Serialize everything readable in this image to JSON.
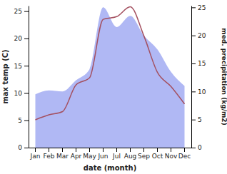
{
  "chart_data": {
    "type": "line",
    "x_label": "date (month)",
    "y_label": "max temp (C)",
    "y2_label": "med. precipitation (kg/m2)",
    "categories": [
      "Jan",
      "Feb",
      "Mar",
      "Apr",
      "May",
      "Jun",
      "Jul",
      "Aug",
      "Sep",
      "Oct",
      "Nov",
      "Dec"
    ],
    "ylim": [
      0,
      26
    ],
    "yticks": [
      0,
      5,
      10,
      15,
      20,
      25
    ],
    "y2lim": [
      0,
      25.3
    ],
    "y2ticks": [
      0,
      5,
      10,
      15,
      20,
      25
    ],
    "series": [
      {
        "type": "area",
        "axis": "y2",
        "color": "#b0b8f4",
        "values": [
          9.5,
          10.2,
          10.0,
          12.0,
          14.0,
          25.0,
          21.5,
          23.5,
          20.0,
          17.5,
          13.5,
          11.0
        ]
      },
      {
        "type": "line",
        "color": "#a45060",
        "values": [
          5.1,
          6.0,
          6.6,
          11.5,
          12.8,
          23.5,
          24.0,
          25.8,
          20.5,
          13.8,
          11.2,
          8.0
        ]
      }
    ]
  }
}
